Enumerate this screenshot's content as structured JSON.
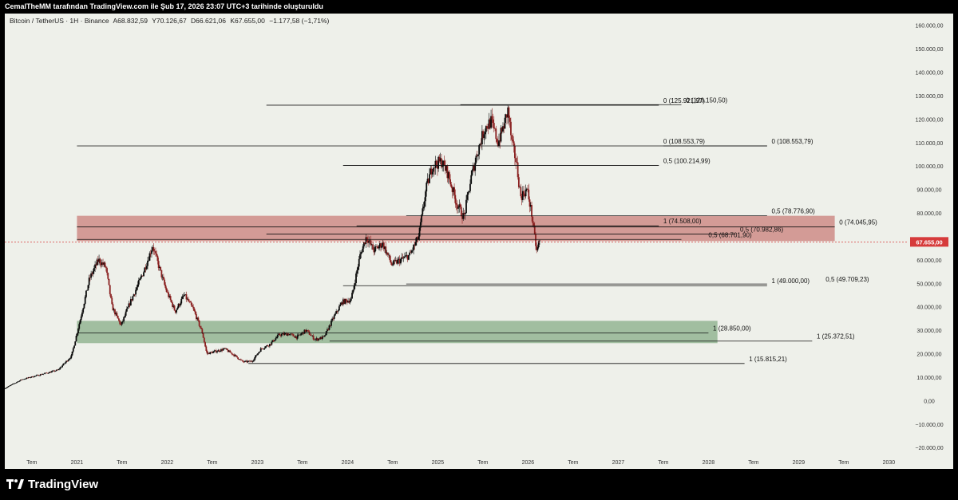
{
  "header": {
    "creator_text": "CemalTheMM tarafından TradingView.com ile Şub 17, 2026 23:07 UTC+3 tarihinde oluşturuldu"
  },
  "symbol_bar": {
    "name": "Bitcoin / TetherUS · 1H · Binance",
    "open": "A68.832,59",
    "high": "Y70.126,67",
    "low": "D66.621,06",
    "close": "K67.655,00",
    "change": "−1.177,58 (−1,71%)"
  },
  "footer": {
    "brand": "TradingView",
    "logo_icon": "tradingview-logo-icon"
  },
  "colors": {
    "background": "#eef0ea",
    "candle_up": "#0a0a0a",
    "candle_down": "#8a2020",
    "resistance_zone": "#c97f7a",
    "support_zone": "#87ad87",
    "price_line": "#d63b3b",
    "price_badge": "#d63b3b"
  },
  "chart_data": {
    "type": "candlestick",
    "x_unit": "year",
    "xlim": [
      2020.2,
      2030.2
    ],
    "ylim": [
      -23000,
      165000
    ],
    "grid": false,
    "y_ticks": [
      160000,
      150000,
      140000,
      130000,
      120000,
      110000,
      100000,
      90000,
      80000,
      70000,
      60000,
      50000,
      40000,
      30000,
      20000,
      10000,
      0,
      -10000,
      -20000
    ],
    "y_tick_labels": [
      "160.000,00",
      "150.000,00",
      "140.000,00",
      "130.000,00",
      "120.000,00",
      "110.000,00",
      "100.000,00",
      "90.000,00",
      "80.000,00",
      "70.000,00",
      "60.000,00",
      "50.000,00",
      "40.000,00",
      "30.000,00",
      "20.000,00",
      "10.000,00",
      "0,00",
      "−10.000,00",
      "−20.000,00"
    ],
    "x_ticks": [
      {
        "x": 2020.5,
        "label": "Tem"
      },
      {
        "x": 2021.0,
        "label": "2021"
      },
      {
        "x": 2021.5,
        "label": "Tem"
      },
      {
        "x": 2022.0,
        "label": "2022"
      },
      {
        "x": 2022.5,
        "label": "Tem"
      },
      {
        "x": 2023.0,
        "label": "2023"
      },
      {
        "x": 2023.5,
        "label": "Tem"
      },
      {
        "x": 2024.0,
        "label": "2024"
      },
      {
        "x": 2024.5,
        "label": "Tem"
      },
      {
        "x": 2025.0,
        "label": "2025"
      },
      {
        "x": 2025.5,
        "label": "Tem"
      },
      {
        "x": 2026.0,
        "label": "2026"
      },
      {
        "x": 2026.5,
        "label": "Tem"
      },
      {
        "x": 2027.0,
        "label": "2027"
      },
      {
        "x": 2027.5,
        "label": "Tem"
      },
      {
        "x": 2028.0,
        "label": "2028"
      },
      {
        "x": 2028.5,
        "label": "Tem"
      },
      {
        "x": 2029.0,
        "label": "2029"
      },
      {
        "x": 2029.5,
        "label": "Tem"
      },
      {
        "x": 2030.0,
        "label": "2030"
      }
    ],
    "current_price": {
      "value": 67655,
      "label": "67.655,00"
    },
    "price_path": [
      [
        2020.2,
        5000
      ],
      [
        2020.4,
        9000
      ],
      [
        2020.6,
        11000
      ],
      [
        2020.8,
        13000
      ],
      [
        2020.95,
        19000
      ],
      [
        2021.05,
        35000
      ],
      [
        2021.15,
        52000
      ],
      [
        2021.25,
        60000
      ],
      [
        2021.33,
        57000
      ],
      [
        2021.4,
        40000
      ],
      [
        2021.5,
        32000
      ],
      [
        2021.58,
        40000
      ],
      [
        2021.66,
        47000
      ],
      [
        2021.75,
        55000
      ],
      [
        2021.85,
        66000
      ],
      [
        2021.92,
        57000
      ],
      [
        2022.0,
        47000
      ],
      [
        2022.1,
        38000
      ],
      [
        2022.2,
        45000
      ],
      [
        2022.3,
        39000
      ],
      [
        2022.4,
        29000
      ],
      [
        2022.45,
        20000
      ],
      [
        2022.55,
        21000
      ],
      [
        2022.65,
        22000
      ],
      [
        2022.75,
        19500
      ],
      [
        2022.85,
        16500
      ],
      [
        2022.95,
        16700
      ],
      [
        2023.05,
        22000
      ],
      [
        2023.15,
        24000
      ],
      [
        2023.25,
        28000
      ],
      [
        2023.35,
        28500
      ],
      [
        2023.45,
        27000
      ],
      [
        2023.55,
        30000
      ],
      [
        2023.65,
        26000
      ],
      [
        2023.75,
        27000
      ],
      [
        2023.85,
        35000
      ],
      [
        2023.95,
        42000
      ],
      [
        2024.05,
        43000
      ],
      [
        2024.15,
        62000
      ],
      [
        2024.22,
        70000
      ],
      [
        2024.3,
        64000
      ],
      [
        2024.4,
        67000
      ],
      [
        2024.5,
        58000
      ],
      [
        2024.6,
        60000
      ],
      [
        2024.7,
        62000
      ],
      [
        2024.8,
        70000
      ],
      [
        2024.88,
        90000
      ],
      [
        2024.95,
        100000
      ],
      [
        2025.05,
        102000
      ],
      [
        2025.12,
        97000
      ],
      [
        2025.22,
        84000
      ],
      [
        2025.3,
        78000
      ],
      [
        2025.38,
        95000
      ],
      [
        2025.45,
        106000
      ],
      [
        2025.53,
        116000
      ],
      [
        2025.6,
        119000
      ],
      [
        2025.68,
        110000
      ],
      [
        2025.75,
        118000
      ],
      [
        2025.79,
        124000
      ],
      [
        2025.83,
        110000
      ],
      [
        2025.88,
        102000
      ],
      [
        2025.93,
        87000
      ],
      [
        2026.0,
        90000
      ],
      [
        2026.05,
        80000
      ],
      [
        2026.09,
        68000
      ],
      [
        2026.11,
        63000
      ],
      [
        2026.13,
        67655
      ]
    ],
    "zones": [
      {
        "name": "resistance-zone",
        "x1": 2021.0,
        "x2": 2029.4,
        "y1": 68000,
        "y2": 78776,
        "color": "#c97f7a"
      },
      {
        "name": "support-zone",
        "x1": 2021.0,
        "x2": 2028.1,
        "y1": 24500,
        "y2": 34000,
        "color": "#87ad87"
      }
    ],
    "levels": [
      {
        "y": 126150,
        "x1": 2025.25,
        "x2": 2027.7,
        "label": "0 (126.150,50)",
        "label_x": 2027.75
      },
      {
        "y": 125921.97,
        "x1": 2023.1,
        "x2": 2027.45,
        "label": "0 (125.921,97)",
        "label_x": 2027.5
      },
      {
        "y": 108553.79,
        "x1": 2021.0,
        "x2": 2028.65,
        "label": "0 (108.553,79)",
        "label_x": 2027.5
      },
      {
        "y": 108553.79,
        "x1": 2027.5,
        "x2": 2028.65,
        "label": "0 (108.553,79)",
        "label_x": 2028.7
      },
      {
        "y": 100214.99,
        "x1": 2023.95,
        "x2": 2027.45,
        "label": "0,5 (100.214,99)",
        "label_x": 2027.5
      },
      {
        "y": 78776.9,
        "x1": 2024.65,
        "x2": 2028.65,
        "label": "0,5 (78.776,90)",
        "label_x": 2028.7
      },
      {
        "y": 74508.0,
        "x1": 2024.1,
        "x2": 2027.45,
        "label": "1 (74.508,00)",
        "label_x": 2027.5
      },
      {
        "y": 74045.95,
        "x1": 2021.0,
        "x2": 2029.4,
        "label": "0 (74.045,95)",
        "label_x": 2029.45
      },
      {
        "y": 70982.86,
        "x1": 2023.1,
        "x2": 2028.3,
        "label": "0,5 (70.982,86)",
        "label_x": 2028.35
      },
      {
        "y": 68701.9,
        "x1": 2021.0,
        "x2": 2027.7,
        "label": "0,5 (68.701,90)",
        "label_x": 2028.0
      },
      {
        "y": 49709.23,
        "x1": 2024.65,
        "x2": 2028.65,
        "label": "0,5 (49.709,23)",
        "label_x": 2029.3
      },
      {
        "y": 49000.0,
        "x1": 2023.95,
        "x2": 2028.65,
        "label": "1 (49.000,00)",
        "label_x": 2028.7
      },
      {
        "y": 28850.0,
        "x1": 2021.0,
        "x2": 2028.0,
        "label": "1 (28.850,00)",
        "label_x": 2028.05
      },
      {
        "y": 25372.51,
        "x1": 2023.8,
        "x2": 2029.15,
        "label": "1 (25.372,51)",
        "label_x": 2029.2
      },
      {
        "y": 15815.21,
        "x1": 2022.9,
        "x2": 2028.4,
        "label": "1 (15.815,21)",
        "label_x": 2028.45
      }
    ]
  }
}
